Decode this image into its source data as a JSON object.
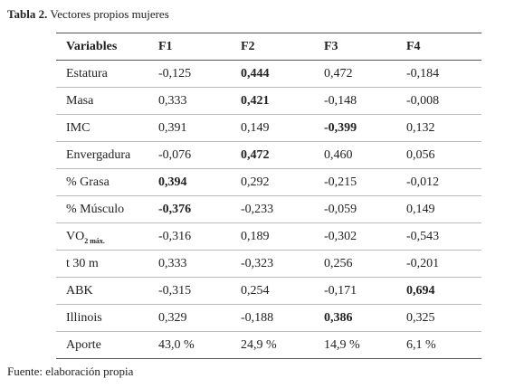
{
  "title": {
    "label": "Tabla 2.",
    "text": "Vectores propios mujeres"
  },
  "table": {
    "header": [
      "Variables",
      "F1",
      "F2",
      "F3",
      "F4"
    ],
    "rows": [
      [
        "Estatura",
        "-0,125",
        "0,444",
        "0,472",
        "-0,184"
      ],
      [
        "Masa",
        "0,333",
        "0,421",
        "-0,148",
        "-0,008"
      ],
      [
        "IMC",
        "0,391",
        "0,149",
        "-0,399",
        "0,132"
      ],
      [
        "Envergadura",
        "-0,076",
        "0,472",
        "0,460",
        "0,056"
      ],
      [
        "% Grasa",
        "0,394",
        "0,292",
        "-0,215",
        "-0,012"
      ],
      [
        "% Músculo",
        "-0,376",
        "-0,233",
        "-0,059",
        "0,149"
      ],
      [
        {
          "text": "VO",
          "sub": "2 máx."
        },
        "-0,316",
        "0,189",
        "-0,302",
        "-0,543"
      ],
      [
        "t 30 m",
        "0,333",
        "-0,323",
        "0,256",
        "-0,201"
      ],
      [
        "ABK",
        "-0,315",
        "0,254",
        "-0,171",
        "0,694"
      ],
      [
        "Illinois",
        "0,329",
        "-0,188",
        "0,386",
        "0,325"
      ],
      [
        "Aporte",
        "43,0 %",
        "24,9 %",
        "14,9 %",
        "6,1 %"
      ]
    ],
    "bold_cells": [
      [
        0,
        2
      ],
      [
        1,
        2
      ],
      [
        2,
        3
      ],
      [
        3,
        2
      ],
      [
        4,
        1
      ],
      [
        5,
        1
      ],
      [
        8,
        4
      ],
      [
        9,
        3
      ]
    ]
  },
  "footer": "Fuente: elaboración propia"
}
